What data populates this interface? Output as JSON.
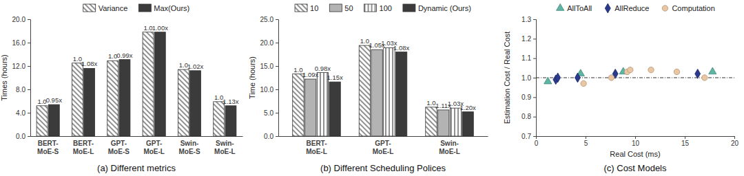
{
  "chart_data": [
    {
      "type": "bar",
      "title": "(a) Different metrics",
      "y_label": "Times (hours)",
      "categories": [
        "BERT-MoE-S",
        "BERT-MoE-L",
        "GPT-MoE-S",
        "GPT-MoE-L",
        "Swin-MoE-S",
        "Swin-MoE-L"
      ],
      "series": [
        {
          "name": "Variance",
          "color": "#ffffff",
          "values": [
            5.2,
            12.5,
            12.9,
            17.8,
            11.4,
            5.9
          ],
          "annotations": [
            "1.0",
            "1.0",
            "1.0",
            "1.0",
            "1.0",
            "1.0"
          ]
        },
        {
          "name": "Max(Ours)",
          "color": "#3b3b3b",
          "values": [
            5.4,
            11.6,
            13.1,
            17.8,
            11.2,
            5.2
          ],
          "annotations": [
            "0.95x",
            "1.08x",
            "0.99x",
            "1.00x",
            "1.02x",
            "1.13x"
          ]
        }
      ],
      "ylim": [
        0,
        20
      ],
      "yticks": [
        {
          "value": 0,
          "label": "0.0"
        },
        {
          "value": 4,
          "label": "4.0"
        },
        {
          "value": 8,
          "label": "8.0"
        },
        {
          "value": 12,
          "label": "12.0"
        },
        {
          "value": 16,
          "label": "16.0"
        },
        {
          "value": 20,
          "label": "20.0"
        }
      ],
      "legend": "top"
    },
    {
      "type": "bar",
      "title": "(b) Different Scheduling Polices",
      "y_label": "Time (hours)",
      "categories": [
        "BERT-MoE-L",
        "GPT-MoE-L",
        "Swin-MoE-L"
      ],
      "series": [
        {
          "name": "10",
          "color": "#ffffff",
          "values": [
            13.3,
            19.4,
            6.2
          ],
          "annotations": [
            "1.0",
            "1.0",
            "1.0"
          ]
        },
        {
          "name": "50",
          "color": "#b3b3b3",
          "values": [
            12.2,
            18.5,
            5.6
          ],
          "annotations": [
            "1.09x",
            "1.05x",
            "1.11x"
          ]
        },
        {
          "name": "100",
          "color": "#ffffff",
          "values": [
            13.6,
            18.9,
            6.0
          ],
          "annotations": [
            "0.98x",
            "1.03x",
            "1.03x"
          ]
        },
        {
          "name": "Dynamic (Ours)",
          "color": "#3b3b3b",
          "values": [
            11.6,
            18.0,
            5.2
          ],
          "annotations": [
            "1.15x",
            "1.08x",
            "1.20x"
          ]
        }
      ],
      "ylim": [
        0,
        25
      ],
      "yticks": [
        {
          "value": 0,
          "label": "0.0"
        },
        {
          "value": 5,
          "label": "5.0"
        },
        {
          "value": 10,
          "label": "10.0"
        },
        {
          "value": 15,
          "label": "15.0"
        },
        {
          "value": 20,
          "label": "20.0"
        },
        {
          "value": 25,
          "label": "25.0"
        }
      ],
      "legend": "top"
    },
    {
      "type": "scatter",
      "title": "(c) Cost Models",
      "x_label": "Real Cost (ms)",
      "y_label": "Estimation Cost / Real Cost",
      "series": [
        {
          "name": "AllToAll",
          "color": "#5db5a4",
          "marker": "triangle",
          "x": [
            1.2,
            4.5,
            8.8,
            17.8
          ],
          "values": [
            0.98,
            1.02,
            1.03,
            1.03
          ]
        },
        {
          "name": "AllReduce",
          "color": "#2b3a8c",
          "marker": "diamond",
          "x": [
            2.0,
            2.2,
            4.2,
            8.0,
            16.3
          ],
          "values": [
            0.99,
            1.0,
            1.0,
            1.02,
            1.02
          ]
        },
        {
          "name": "Computation",
          "color": "#eac6a2",
          "marker": "circle",
          "x": [
            4.8,
            7.6,
            9.2,
            9.5,
            11.6,
            14.2,
            17.0
          ],
          "values": [
            0.97,
            1.0,
            1.03,
            1.04,
            1.04,
            1.03,
            1.0
          ]
        }
      ],
      "reference_y": 1,
      "xlim": [
        0,
        20
      ],
      "xticks": [
        0,
        5,
        10,
        15,
        20
      ],
      "ylim": [
        0.7,
        1.3
      ],
      "yticks": [
        0.7,
        0.8,
        0.9,
        {
          "value": 1,
          "label": "1.0"
        },
        1.1,
        1.2,
        1.3
      ],
      "legend": "top"
    }
  ]
}
